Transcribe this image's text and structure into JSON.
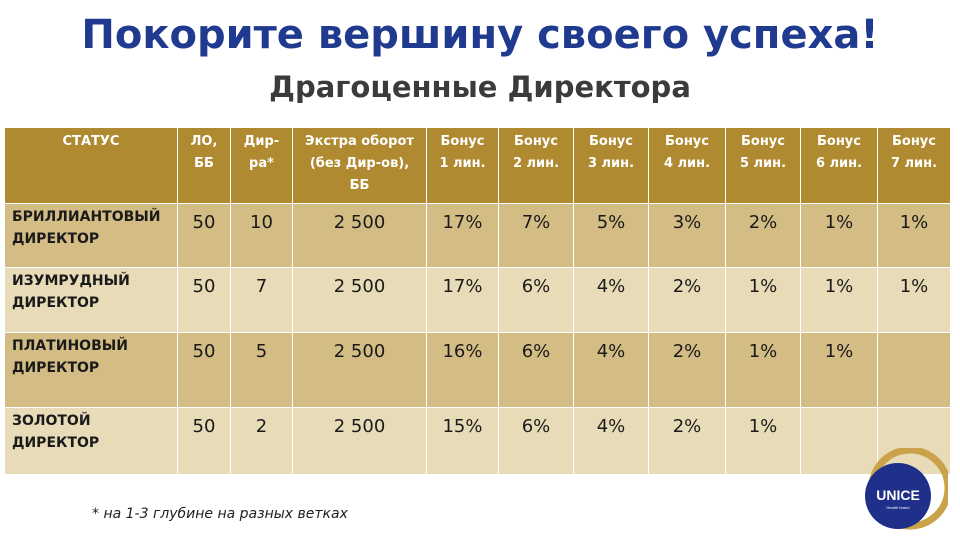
{
  "title": "Покорите вершину своего успеха!",
  "subtitle": "Драгоценные Директора",
  "table": {
    "headers": [
      [
        "СТАТУС"
      ],
      [
        "ЛО,",
        "ББ"
      ],
      [
        "Дир-",
        "ра*"
      ],
      [
        "Экстра оборот",
        "(без Дир-ов),",
        "ББ"
      ],
      [
        "Бонус",
        "1 лин."
      ],
      [
        "Бонус",
        "2 лин."
      ],
      [
        "Бонус",
        "3 лин."
      ],
      [
        "Бонус",
        "4 лин."
      ],
      [
        "Бонус",
        "5 лин."
      ],
      [
        "Бонус",
        "6 лин."
      ],
      [
        "Бонус",
        "7 лин."
      ]
    ],
    "rows": [
      {
        "status": [
          "БРИЛЛИАНТОВЫЙ",
          "ДИРЕКТОР"
        ],
        "cells": [
          "50",
          "10",
          "2 500",
          "17%",
          "7%",
          "5%",
          "3%",
          "2%",
          "1%",
          "1%"
        ]
      },
      {
        "status": [
          "ИЗУМРУДНЫЙ",
          "ДИРЕКТОР"
        ],
        "cells": [
          "50",
          "7",
          "2 500",
          "17%",
          "6%",
          "4%",
          "2%",
          "1%",
          "1%",
          "1%"
        ]
      },
      {
        "status": [
          "ПЛАТИНОВЫЙ",
          "ДИРЕКТОР"
        ],
        "cells": [
          "50",
          "5",
          "2 500",
          "16%",
          "6%",
          "4%",
          "2%",
          "1%",
          "1%",
          ""
        ]
      },
      {
        "status": [
          "ЗОЛОТОЙ",
          "ДИРЕКТОР"
        ],
        "cells": [
          "50",
          "2",
          "2 500",
          "15%",
          "6%",
          "4%",
          "2%",
          "1%",
          "",
          ""
        ]
      }
    ]
  },
  "footnote": "* на 1-3 глубине на разных ветках",
  "logo": {
    "text": "UNICE",
    "subtext": "Health brand",
    "circle_color": "#1f2f8a",
    "ring_color": "#c9a24a"
  },
  "colors": {
    "title": "#1f3a8f",
    "header_bg": "#b08a30",
    "row_dark": "#d4bd84",
    "row_light": "#e8dcb8"
  }
}
